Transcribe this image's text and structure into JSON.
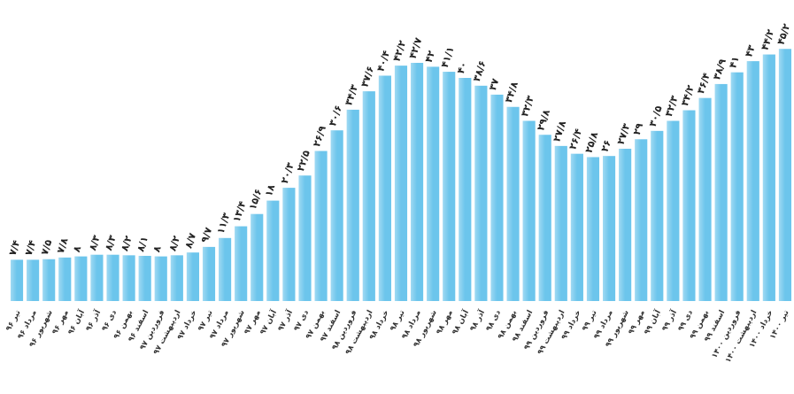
{
  "chart_data": {
    "type": "bar",
    "color": "#6cc5ec",
    "categories": [
      "تیر ۹۶",
      "مرداد ۹۶",
      "شهریور ۹۶",
      "مهر ۹۶",
      "آبان ۹۶",
      "آذر ۹۶",
      "دی ۹۶",
      "بهمن ۹۶",
      "اسفند ۹۶",
      "فروردین ۹۷",
      "اردیبهشت ۹۷",
      "خرداد ۹۷",
      "تیر ۹۷",
      "مرداد ۹۷",
      "شهریور ۹۷",
      "مهر ۹۷",
      "آبان ۹۷",
      "آذر ۹۷",
      "دی ۹۷",
      "بهمن ۹۷",
      "اسفند ۹۷",
      "فروردین ۹۸",
      "اردیبهشت ۹۸",
      "خرداد ۹۸",
      "تیر ۹۸",
      "مرداد ۹۸",
      "شهریور ۹۸",
      "مهر ۹۸",
      "آبان ۹۸",
      "آذر ۹۸",
      "دی ۹۸",
      "بهمن ۹۸",
      "اسفند ۹۸",
      "فروردین ۹۹",
      "اردیبهشت ۹۹",
      "خرداد ۹۹",
      "تیر ۹۹",
      "مرداد ۹۹",
      "شهریور ۹۹",
      "مهر ۹۹",
      "آبان ۹۹",
      "آذر ۹۹",
      "دی ۹۹",
      "بهمن ۹۹",
      "اسفند ۹۹",
      "فروردین ۱۴۰۰",
      "اردیبهشت ۱۴۰۰",
      "خرداد ۱۴۰۰",
      "تیر ۱۴۰۰"
    ],
    "values": [
      7.4,
      7.4,
      7.5,
      7.8,
      8,
      8.3,
      8.3,
      8.2,
      8.1,
      8,
      8.2,
      8.7,
      9.7,
      11.3,
      13.4,
      15.6,
      18,
      20.3,
      22.5,
      26.9,
      30.6,
      34.3,
      37.6,
      40.4,
      42.2,
      42.7,
      42,
      41.1,
      40,
      38.6,
      37,
      34.8,
      32.3,
      29.8,
      27.8,
      26.4,
      25.8,
      26,
      27.3,
      29,
      30.5,
      32.3,
      34.2,
      36.4,
      38.9,
      41,
      43,
      44.2,
      45.2
    ],
    "value_labels": [
      "۷/۴",
      "۷/۴",
      "۷/۵",
      "۷/۸",
      "۸",
      "۸/۳",
      "۸/۳",
      "۸/۲",
      "۸/۱",
      "۸",
      "۸/۲",
      "۸/۷",
      "۹/۷",
      "۱۱/۳",
      "۱۳/۴",
      "۱۵/۶",
      "۱۸",
      "۲۰/۳",
      "۲۲/۵",
      "۲۶/۹",
      "۳۰/۶",
      "۳۴/۳",
      "۳۷/۶",
      "۴۰/۴",
      "۴۲/۲",
      "۴۲/۷",
      "۴۲",
      "۴۱/۱",
      "۴۰",
      "۳۸/۶",
      "۳۷",
      "۳۴/۸",
      "۳۲/۳",
      "۲۹/۸",
      "۲۷/۸",
      "۲۶/۴",
      "۲۵/۸",
      "۲۶",
      "۲۷/۳",
      "۲۹",
      "۳۰/۵",
      "۳۲/۳",
      "۳۴/۲",
      "۳۶/۴",
      "۳۸/۹",
      "۴۱",
      "۴۳",
      "۴۴/۲",
      "۴۵/۲"
    ],
    "ylim": [
      0,
      50
    ]
  }
}
